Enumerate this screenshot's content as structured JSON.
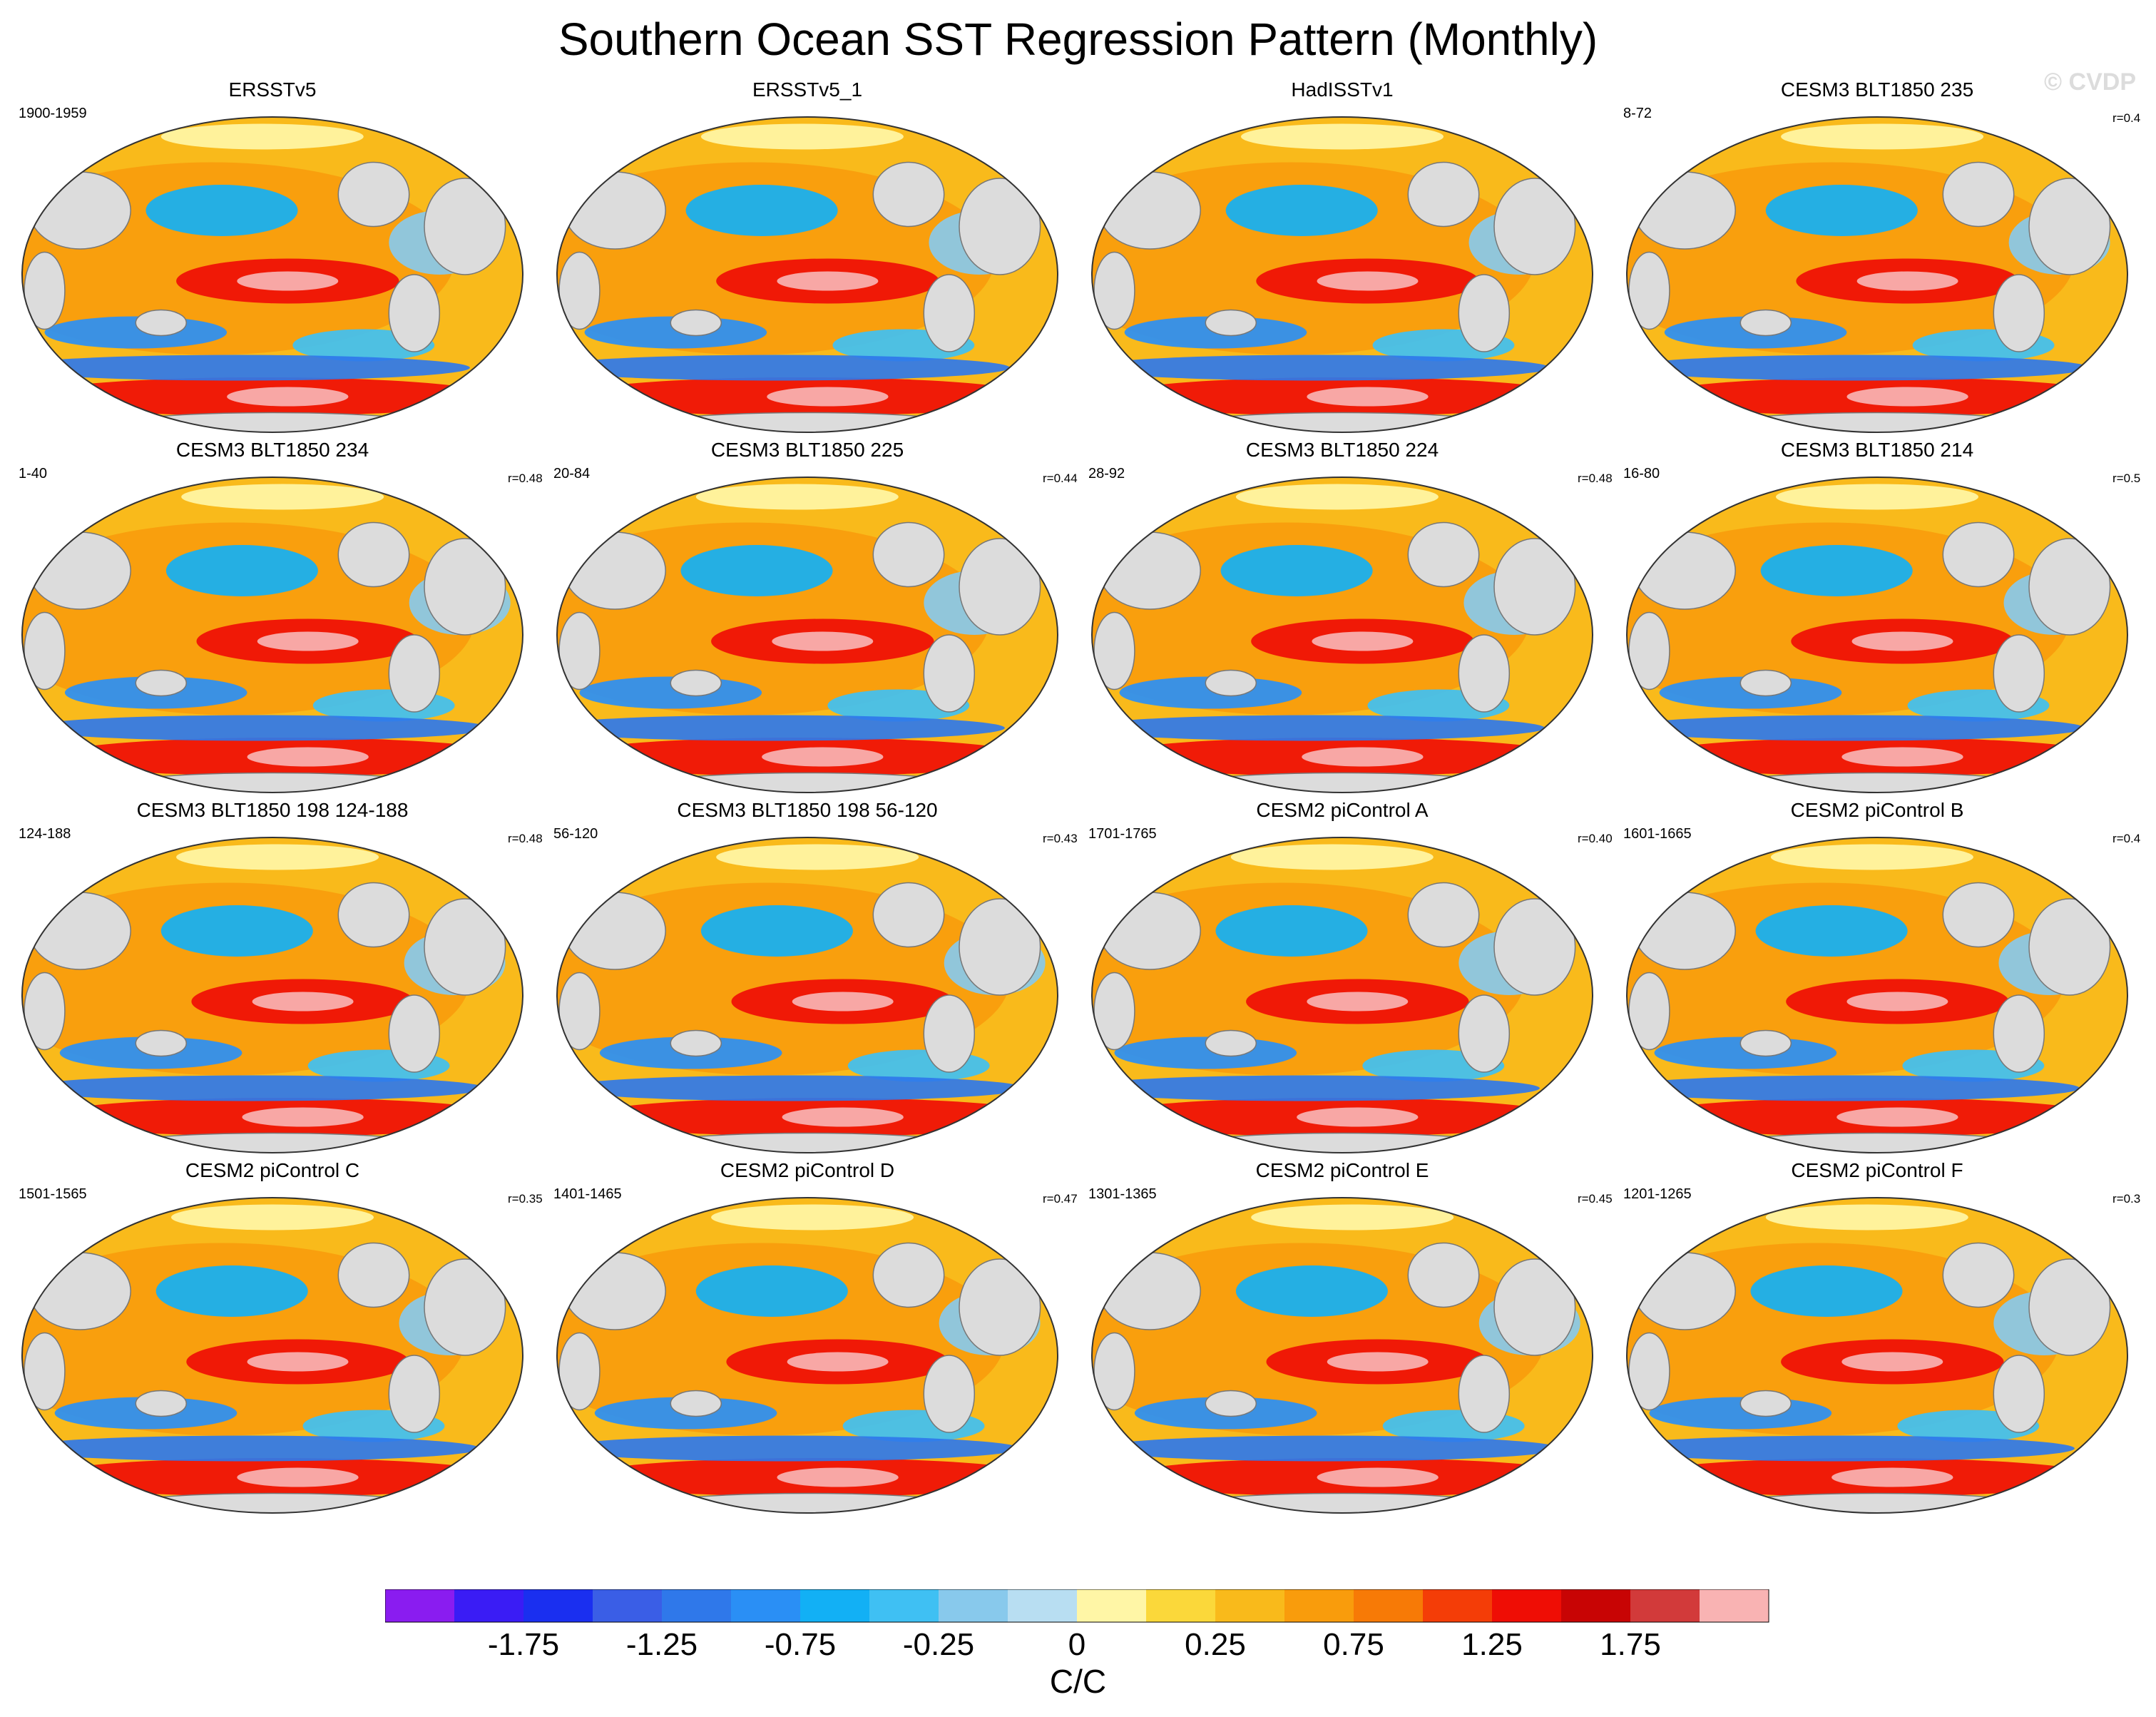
{
  "title": "Southern Ocean SST Regression Pattern (Monthly)",
  "watermark": "© CVDP",
  "chart_data": {
    "type": "map",
    "projection": "robinson-like global map, Pacific-centered",
    "panels": [
      {
        "name": "ERSSTv5",
        "period": "1900-1959",
        "r": ""
      },
      {
        "name": "ERSSTv5_1",
        "period": "",
        "r": ""
      },
      {
        "name": "HadISSTv1",
        "period": "",
        "r": ""
      },
      {
        "name": "CESM3 BLT1850 235",
        "period": "8-72",
        "r": "r=0.4"
      },
      {
        "name": "CESM3 BLT1850 234",
        "period": "1-40",
        "r": "r=0.48"
      },
      {
        "name": "CESM3 BLT1850 225",
        "period": "20-84",
        "r": "r=0.44"
      },
      {
        "name": "CESM3 BLT1850 224",
        "period": "28-92",
        "r": "r=0.48"
      },
      {
        "name": "CESM3 BLT1850 214",
        "period": "16-80",
        "r": "r=0.5"
      },
      {
        "name": "CESM3 BLT1850 198 124-188",
        "period": "124-188",
        "r": "r=0.48"
      },
      {
        "name": "CESM3 BLT1850 198 56-120",
        "period": "56-120",
        "r": "r=0.43"
      },
      {
        "name": "CESM2 piControl A",
        "period": "1701-1765",
        "r": "r=0.40"
      },
      {
        "name": "CESM2 piControl B",
        "period": "1601-1665",
        "r": "r=0.4"
      },
      {
        "name": "CESM2 piControl C",
        "period": "1501-1565",
        "r": "r=0.35"
      },
      {
        "name": "CESM2 piControl D",
        "period": "1401-1465",
        "r": "r=0.47"
      },
      {
        "name": "CESM2 piControl E",
        "period": "1301-1365",
        "r": "r=0.45"
      },
      {
        "name": "CESM2 piControl F",
        "period": "1201-1265",
        "r": "r=0.3"
      }
    ],
    "colorbar": {
      "unit": "C/C",
      "tick_labels": [
        "-1.75",
        "-1.25",
        "-0.75",
        "-0.25",
        "0",
        "0.25",
        "0.75",
        "1.25",
        "1.75"
      ],
      "colors": [
        "#8a1cf0",
        "#3a1cf5",
        "#1a2ff0",
        "#3a5ee6",
        "#2f78ea",
        "#2a8ff5",
        "#12b0f5",
        "#3fc0f3",
        "#88c9ec",
        "#b8def2",
        "#fff6a6",
        "#fbd83a",
        "#f9ba1b",
        "#f99c0c",
        "#f77a06",
        "#f43d07",
        "#ef0d05",
        "#c80404",
        "#d23a3a",
        "#f9b3b3"
      ]
    }
  }
}
